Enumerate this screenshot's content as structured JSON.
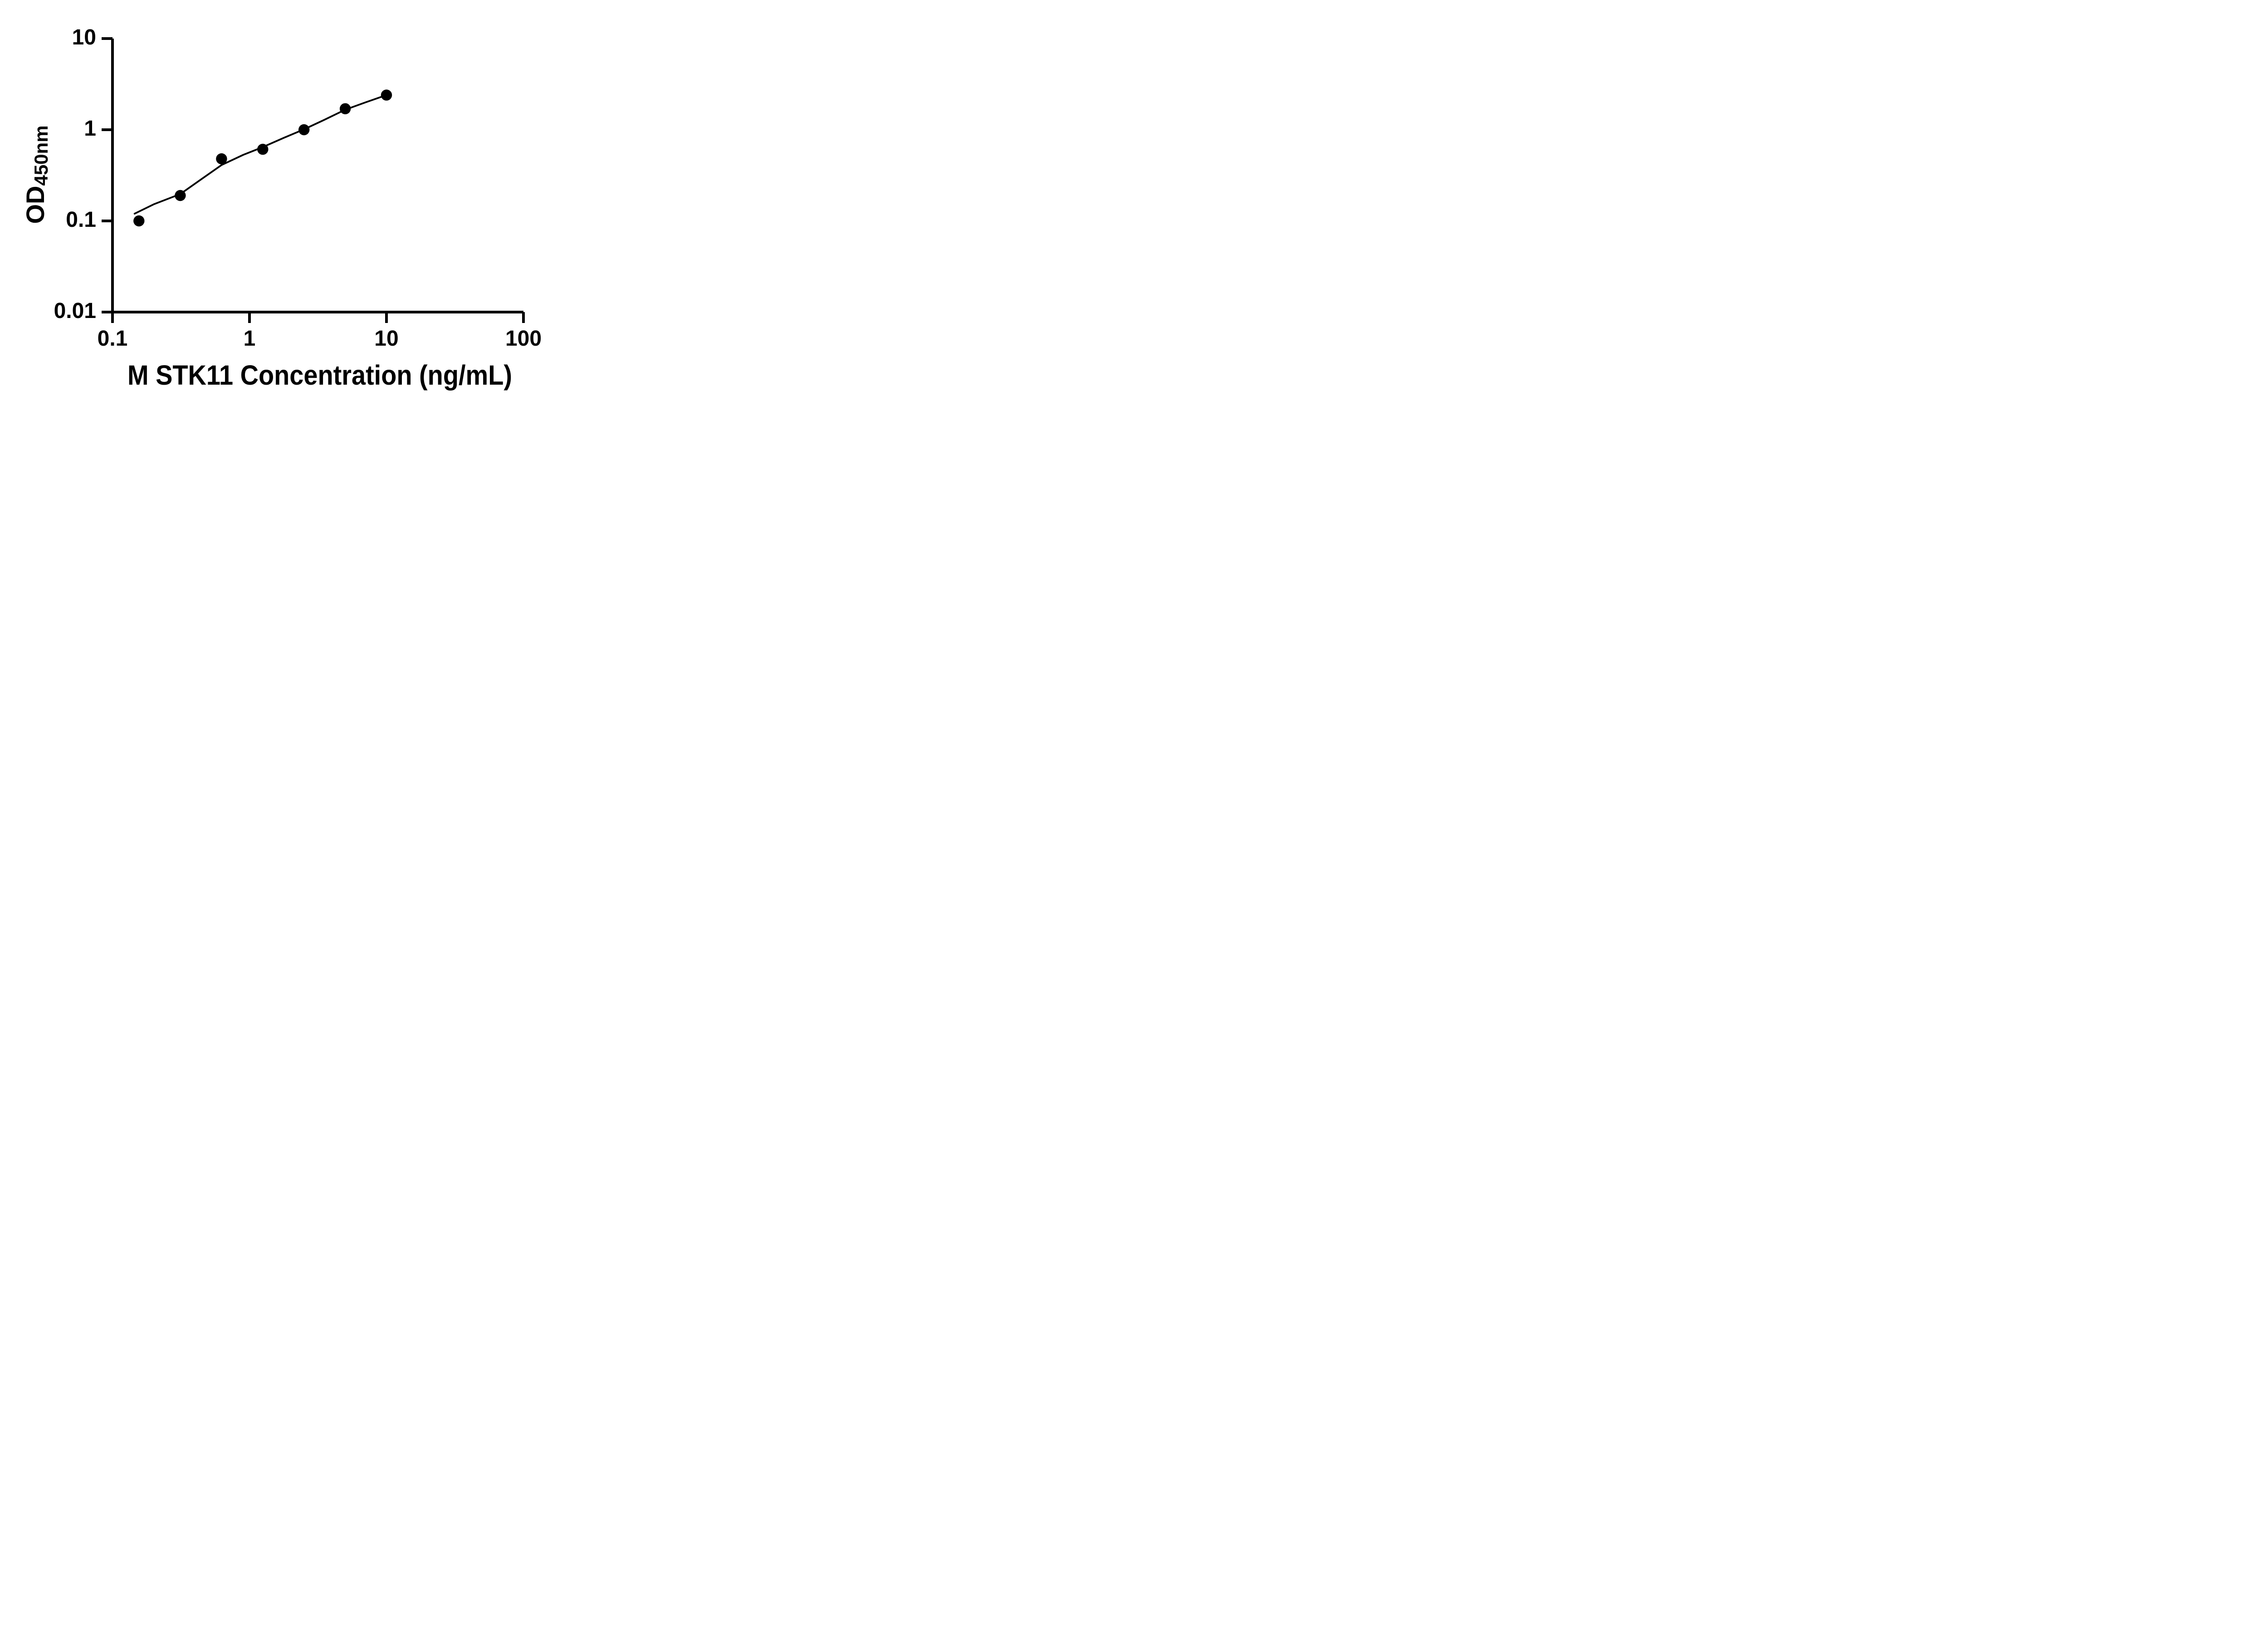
{
  "page": {
    "background": "#ffffff",
    "foreground": "#000000"
  },
  "chart_data": {
    "type": "scatter",
    "title": "",
    "xlabel": "M STK11 Concentration (ng/mL)",
    "ylabel_main": "OD",
    "ylabel_sub": "450nm",
    "x_scale": "log",
    "y_scale": "log",
    "xlim": [
      0.1,
      100
    ],
    "ylim": [
      0.01,
      10
    ],
    "grid": false,
    "legend_position": "none",
    "axis_color": "#000000",
    "marker_color": "#000000",
    "line_color": "#000000",
    "x_ticks": [
      {
        "value": 0.1,
        "label": "0.1"
      },
      {
        "value": 1,
        "label": "1"
      },
      {
        "value": 10,
        "label": "10"
      },
      {
        "value": 100,
        "label": "100"
      }
    ],
    "y_ticks": [
      {
        "value": 10,
        "label": "10"
      },
      {
        "value": 1,
        "label": "1"
      },
      {
        "value": 0.1,
        "label": "0.1"
      },
      {
        "value": 0.01,
        "label": "0.01"
      }
    ],
    "series": [
      {
        "name": "standard-points",
        "marker": "circle",
        "points": [
          {
            "x": 0.156,
            "y": 0.1
          },
          {
            "x": 0.3125,
            "y": 0.19
          },
          {
            "x": 0.625,
            "y": 0.48
          },
          {
            "x": 1.25,
            "y": 0.61
          },
          {
            "x": 2.5,
            "y": 1.0
          },
          {
            "x": 5,
            "y": 1.7
          },
          {
            "x": 10,
            "y": 2.4
          }
        ]
      }
    ],
    "fit_curve": {
      "name": "standard-fit-line",
      "points": [
        {
          "x": 0.145,
          "y": 0.12
        },
        {
          "x": 0.2,
          "y": 0.152
        },
        {
          "x": 0.3125,
          "y": 0.197
        },
        {
          "x": 0.45,
          "y": 0.29
        },
        {
          "x": 0.625,
          "y": 0.41
        },
        {
          "x": 0.9,
          "y": 0.53
        },
        {
          "x": 1.25,
          "y": 0.645
        },
        {
          "x": 1.8,
          "y": 0.82
        },
        {
          "x": 2.5,
          "y": 1.01
        },
        {
          "x": 3.5,
          "y": 1.28
        },
        {
          "x": 5,
          "y": 1.66
        },
        {
          "x": 7,
          "y": 1.99
        },
        {
          "x": 10,
          "y": 2.4
        }
      ]
    }
  }
}
